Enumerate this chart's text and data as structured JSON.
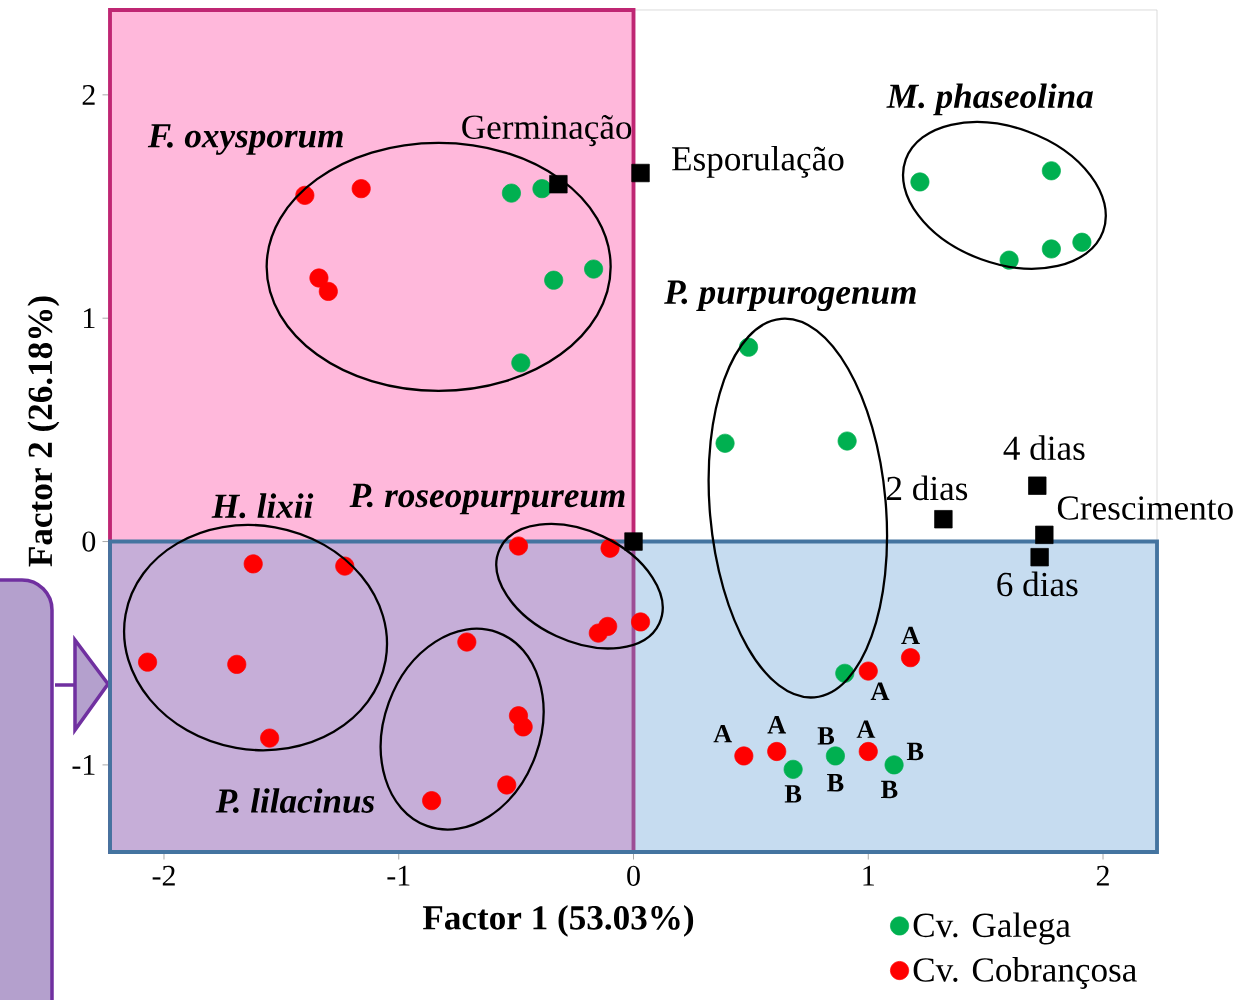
{
  "chart_data": {
    "type": "scatter",
    "xlabel": "Factor 1 (53.03%)",
    "ylabel": "Factor 2 (26.18%)",
    "xlim": [
      -2.23,
      2.23
    ],
    "ylim": [
      -1.39,
      2.38
    ],
    "xticks": [
      -2,
      -1,
      0,
      1,
      2
    ],
    "yticks": [
      -1,
      0,
      1,
      2
    ],
    "grid": false,
    "legend": "bottom right",
    "series": [
      {
        "name": "Cv. Galega",
        "color": "#00b050",
        "marker": "circle",
        "x": [
          -0.52,
          -0.39,
          -0.17,
          -0.34,
          -0.48,
          1.22,
          1.78,
          1.6,
          1.78,
          1.91,
          0.49,
          0.39,
          0.91,
          0.9,
          0.68,
          0.86,
          1.11
        ],
        "values": [
          1.56,
          1.58,
          1.22,
          1.17,
          0.8,
          1.61,
          1.66,
          1.26,
          1.31,
          1.34,
          0.87,
          0.44,
          0.45,
          -0.59,
          -1.02,
          -0.96,
          -1.0
        ]
      },
      {
        "name": "Cv. Cobrançosa",
        "color": "#ff0000",
        "marker": "circle",
        "x": [
          -1.4,
          -1.16,
          -1.34,
          -1.3,
          -1.62,
          -1.23,
          -2.07,
          -1.69,
          -1.55,
          -0.49,
          -0.1,
          0.03,
          -0.11,
          -0.15,
          -0.71,
          -0.49,
          -0.47,
          -0.54,
          -0.86,
          1.0,
          1.18,
          0.47,
          0.61,
          1.0
        ],
        "values": [
          1.55,
          1.58,
          1.18,
          1.12,
          -0.1,
          -0.11,
          -0.54,
          -0.55,
          -0.88,
          -0.02,
          -0.03,
          -0.36,
          -0.38,
          -0.41,
          -0.45,
          -0.78,
          -0.83,
          -1.09,
          -1.16,
          -0.58,
          -0.52,
          -0.96,
          -0.94,
          -0.94
        ]
      },
      {
        "color": "#000000",
        "marker": "square",
        "x": [
          -0.32,
          0.03,
          0.0,
          1.32,
          1.72,
          1.75,
          1.73
        ],
        "values": [
          1.6,
          1.65,
          0.0,
          0.1,
          0.25,
          0.03,
          -0.07
        ]
      }
    ],
    "bands": [
      {
        "axis": "x",
        "from": -2.23,
        "to": 0,
        "color": "#ff3399"
      },
      {
        "axis": "y",
        "from": -1.39,
        "to": 0,
        "color": "#5b9bd5"
      }
    ],
    "annotations": [
      "F. oxysporum",
      "M. phaseolina",
      "P. purpurogenum",
      "H. lixii",
      "P. roseopurpureum",
      "P. lilacinus",
      "Germinação",
      "Esporulação",
      "2 dias",
      "4 dias",
      "Crescimento",
      "6 dias",
      "A",
      "A",
      "A",
      "A",
      "A",
      "B",
      "B",
      "B",
      "B",
      "B"
    ]
  }
}
